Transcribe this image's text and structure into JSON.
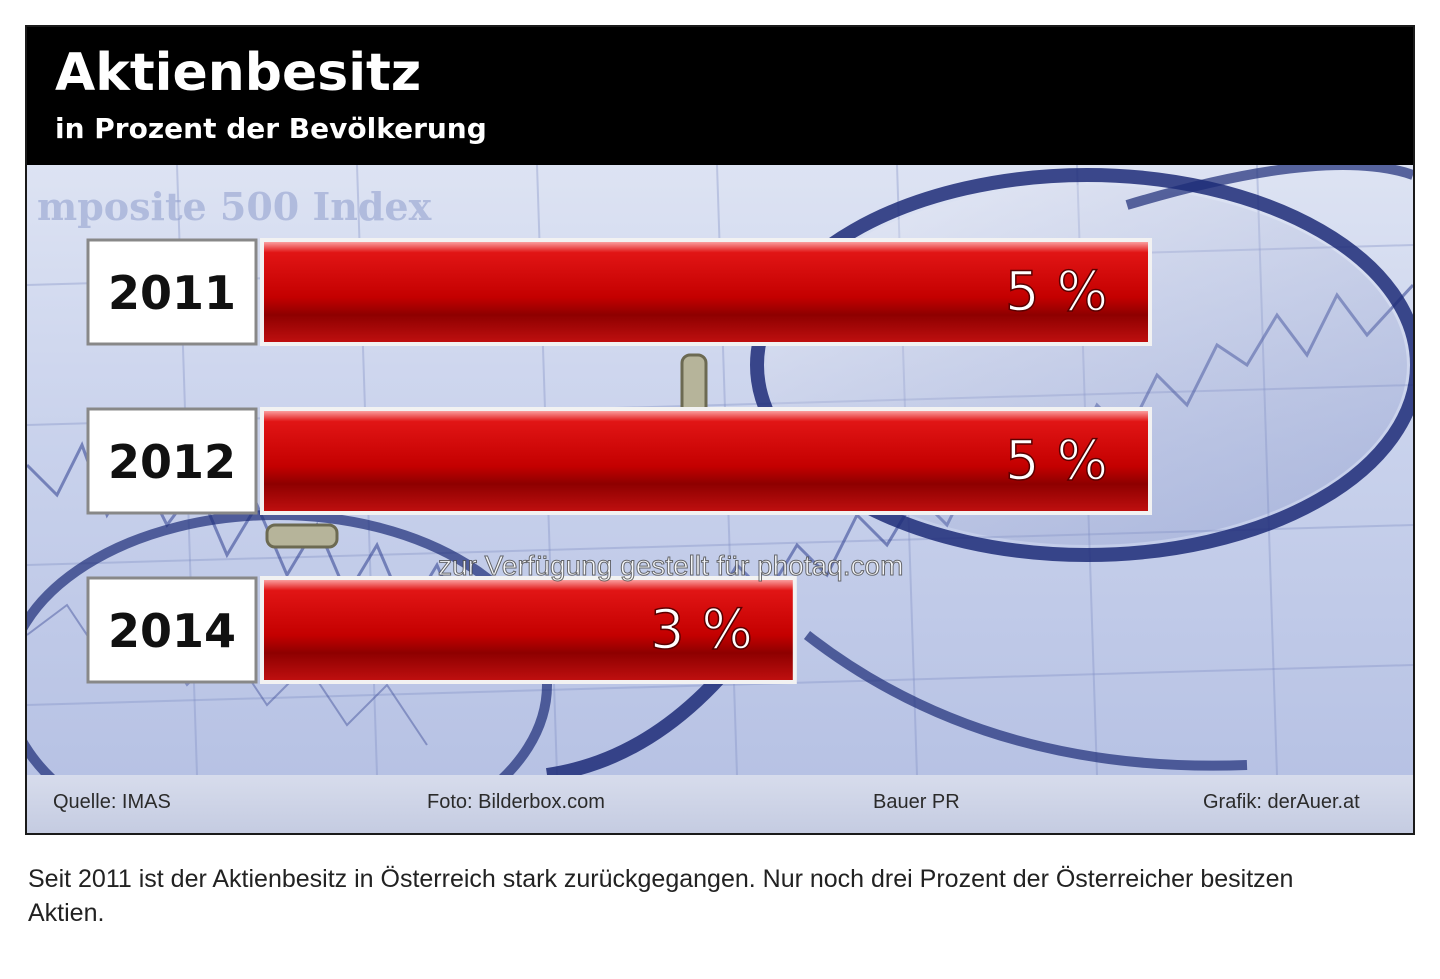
{
  "chart_data": {
    "type": "bar",
    "orientation": "horizontal",
    "title": "Aktienbesitz",
    "subtitle": "in Prozent der Bevölkerung",
    "categories": [
      "2011",
      "2012",
      "2014"
    ],
    "values": [
      5,
      5,
      3
    ],
    "data_labels": [
      "5 %",
      "5 %",
      "3 %"
    ],
    "xlim": [
      0,
      5
    ],
    "grid": false,
    "bar_color": "#d40000"
  },
  "footer": {
    "source": "Quelle: IMAS",
    "photo": "Foto: Bilderbox.com",
    "agency": "Bauer PR",
    "graphic": "Grafik: derAuer.at"
  },
  "background_text": "mposite 500 Index",
  "watermark": "zur Verfügung gestellt für photaq.com",
  "caption": "Seit 2011 ist der Aktienbesitz in Österreich stark zurückgegangen. Nur noch drei Prozent der Österreicher besitzen Aktien."
}
